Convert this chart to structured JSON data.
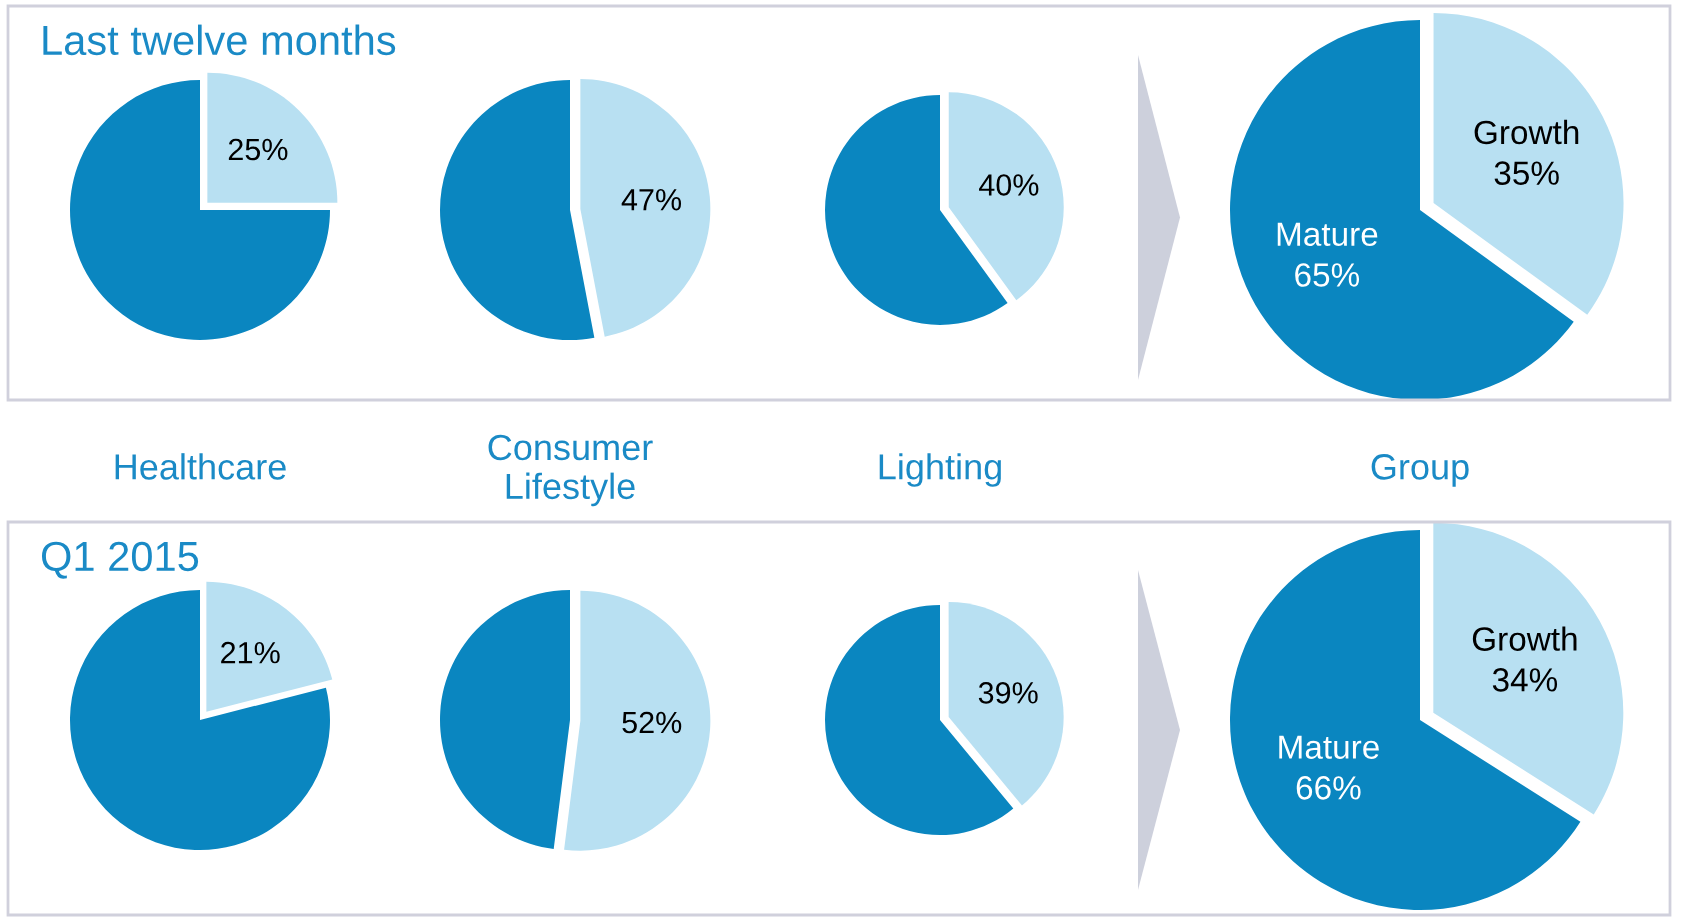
{
  "chart_data": [
    {
      "type": "pie",
      "title": "Last twelve months",
      "xlabel": "Healthcare",
      "categories": [
        null,
        null
      ],
      "values": [
        75,
        25
      ],
      "colors": [
        "#0a86c0",
        "#b8e0f2"
      ],
      "value_labels": [
        null,
        "25%"
      ]
    },
    {
      "type": "pie",
      "xlabel": "Consumer\nLifestyle",
      "categories": [
        null,
        null
      ],
      "values": [
        53,
        47
      ],
      "colors": [
        "#0a86c0",
        "#b8e0f2"
      ],
      "value_labels": [
        null,
        "47%"
      ]
    },
    {
      "type": "pie",
      "xlabel": "Lighting",
      "categories": [
        null,
        null
      ],
      "values": [
        60,
        40
      ],
      "colors": [
        "#0a86c0",
        "#b8e0f2"
      ],
      "value_labels": [
        null,
        "40%"
      ]
    },
    {
      "type": "pie",
      "xlabel": "Group",
      "categories": [
        "Mature",
        "Growth"
      ],
      "values": [
        65,
        35
      ],
      "colors": [
        "#0a86c0",
        "#b8e0f2"
      ],
      "value_labels": [
        "65%",
        "35%"
      ]
    },
    {
      "type": "pie",
      "title": "Q1 2015",
      "categories": [
        null,
        null
      ],
      "values": [
        79,
        21
      ],
      "colors": [
        "#0a86c0",
        "#b8e0f2"
      ],
      "value_labels": [
        null,
        "21%"
      ]
    },
    {
      "type": "pie",
      "categories": [
        null,
        null
      ],
      "values": [
        48,
        52
      ],
      "colors": [
        "#0a86c0",
        "#b8e0f2"
      ],
      "value_labels": [
        null,
        "52%"
      ]
    },
    {
      "type": "pie",
      "categories": [
        null,
        null
      ],
      "values": [
        61,
        39
      ],
      "colors": [
        "#0a86c0",
        "#b8e0f2"
      ],
      "value_labels": [
        null,
        "39%"
      ]
    },
    {
      "type": "pie",
      "categories": [
        "Mature",
        "Growth"
      ],
      "values": [
        66,
        34
      ],
      "colors": [
        "#0a86c0",
        "#b8e0f2"
      ],
      "value_labels": [
        "66%",
        "34%"
      ]
    }
  ]
}
